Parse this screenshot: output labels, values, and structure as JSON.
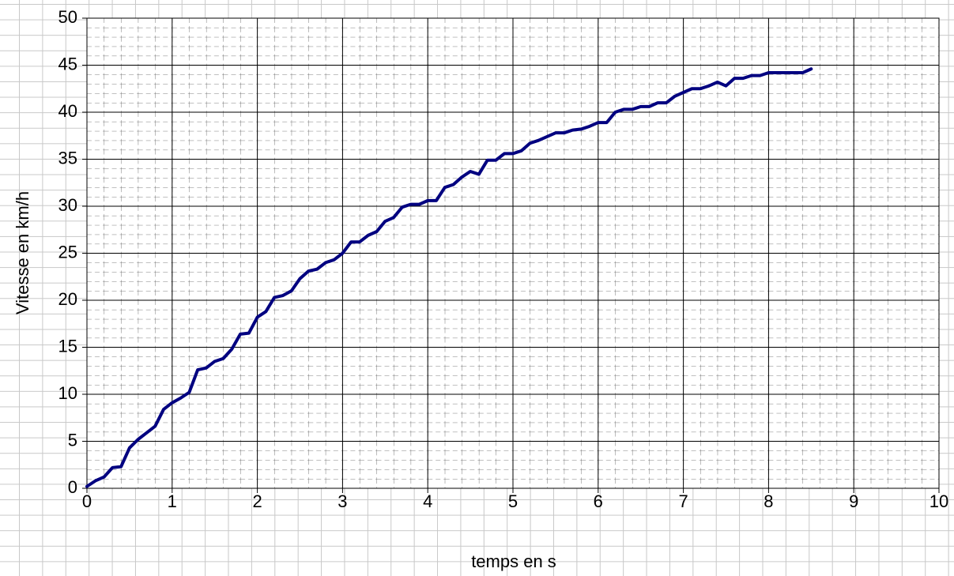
{
  "chart_data": {
    "type": "line",
    "x_label": "temps en s",
    "y_label": "Vitesse en km/h",
    "x": [
      0,
      0.1,
      0.2,
      0.3,
      0.4,
      0.5,
      0.6,
      0.7,
      0.8,
      0.9,
      1.0,
      1.1,
      1.2,
      1.3,
      1.4,
      1.5,
      1.6,
      1.7,
      1.8,
      1.9,
      2.0,
      2.1,
      2.2,
      2.3,
      2.4,
      2.5,
      2.6,
      2.7,
      2.8,
      2.9,
      3.0,
      3.1,
      3.2,
      3.3,
      3.4,
      3.5,
      3.6,
      3.7,
      3.8,
      3.9,
      4.0,
      4.1,
      4.2,
      4.3,
      4.4,
      4.5,
      4.6,
      4.7,
      4.8,
      4.9,
      5.0,
      5.1,
      5.2,
      5.3,
      5.4,
      5.5,
      5.6,
      5.7,
      5.8,
      5.9,
      6.0,
      6.1,
      6.2,
      6.3,
      6.4,
      6.5,
      6.6,
      6.7,
      6.8,
      6.9,
      7.0,
      7.1,
      7.2,
      7.3,
      7.4,
      7.5,
      7.6,
      7.7,
      7.8,
      7.9,
      8.0,
      8.1,
      8.2,
      8.3,
      8.4,
      8.5
    ],
    "series": [
      {
        "color": "#000080",
        "values": [
          0.2,
          0.8,
          1.2,
          2.2,
          2.3,
          4.3,
          5.2,
          5.9,
          6.6,
          8.4,
          9.1,
          9.6,
          10.2,
          12.6,
          12.8,
          13.5,
          13.8,
          14.8,
          16.4,
          16.5,
          18.2,
          18.8,
          20.3,
          20.5,
          21.0,
          22.3,
          23.1,
          23.3,
          24.0,
          24.3,
          25.0,
          26.2,
          26.2,
          26.9,
          27.3,
          28.4,
          28.8,
          29.9,
          30.2,
          30.2,
          30.6,
          30.6,
          32.0,
          32.3,
          33.1,
          33.7,
          33.4,
          34.9,
          34.9,
          35.6,
          35.6,
          35.9,
          36.7,
          37.0,
          37.4,
          37.8,
          37.8,
          38.1,
          38.2,
          38.5,
          38.9,
          38.9,
          40.0,
          40.3,
          40.3,
          40.6,
          40.6,
          41.0,
          41.0,
          41.7,
          42.1,
          42.5,
          42.5,
          42.8,
          43.2,
          42.8,
          43.6,
          43.6,
          43.9,
          43.9,
          44.2,
          44.2,
          44.2,
          44.2,
          44.2,
          44.6
        ]
      }
    ],
    "xlim": [
      0,
      10
    ],
    "xticks": [
      0,
      1,
      2,
      3,
      4,
      5,
      6,
      7,
      8,
      9,
      10
    ],
    "ylim": [
      0,
      50
    ],
    "yticks": [
      0,
      5,
      10,
      15,
      20,
      25,
      30,
      35,
      40,
      45,
      50
    ],
    "grid": true
  }
}
